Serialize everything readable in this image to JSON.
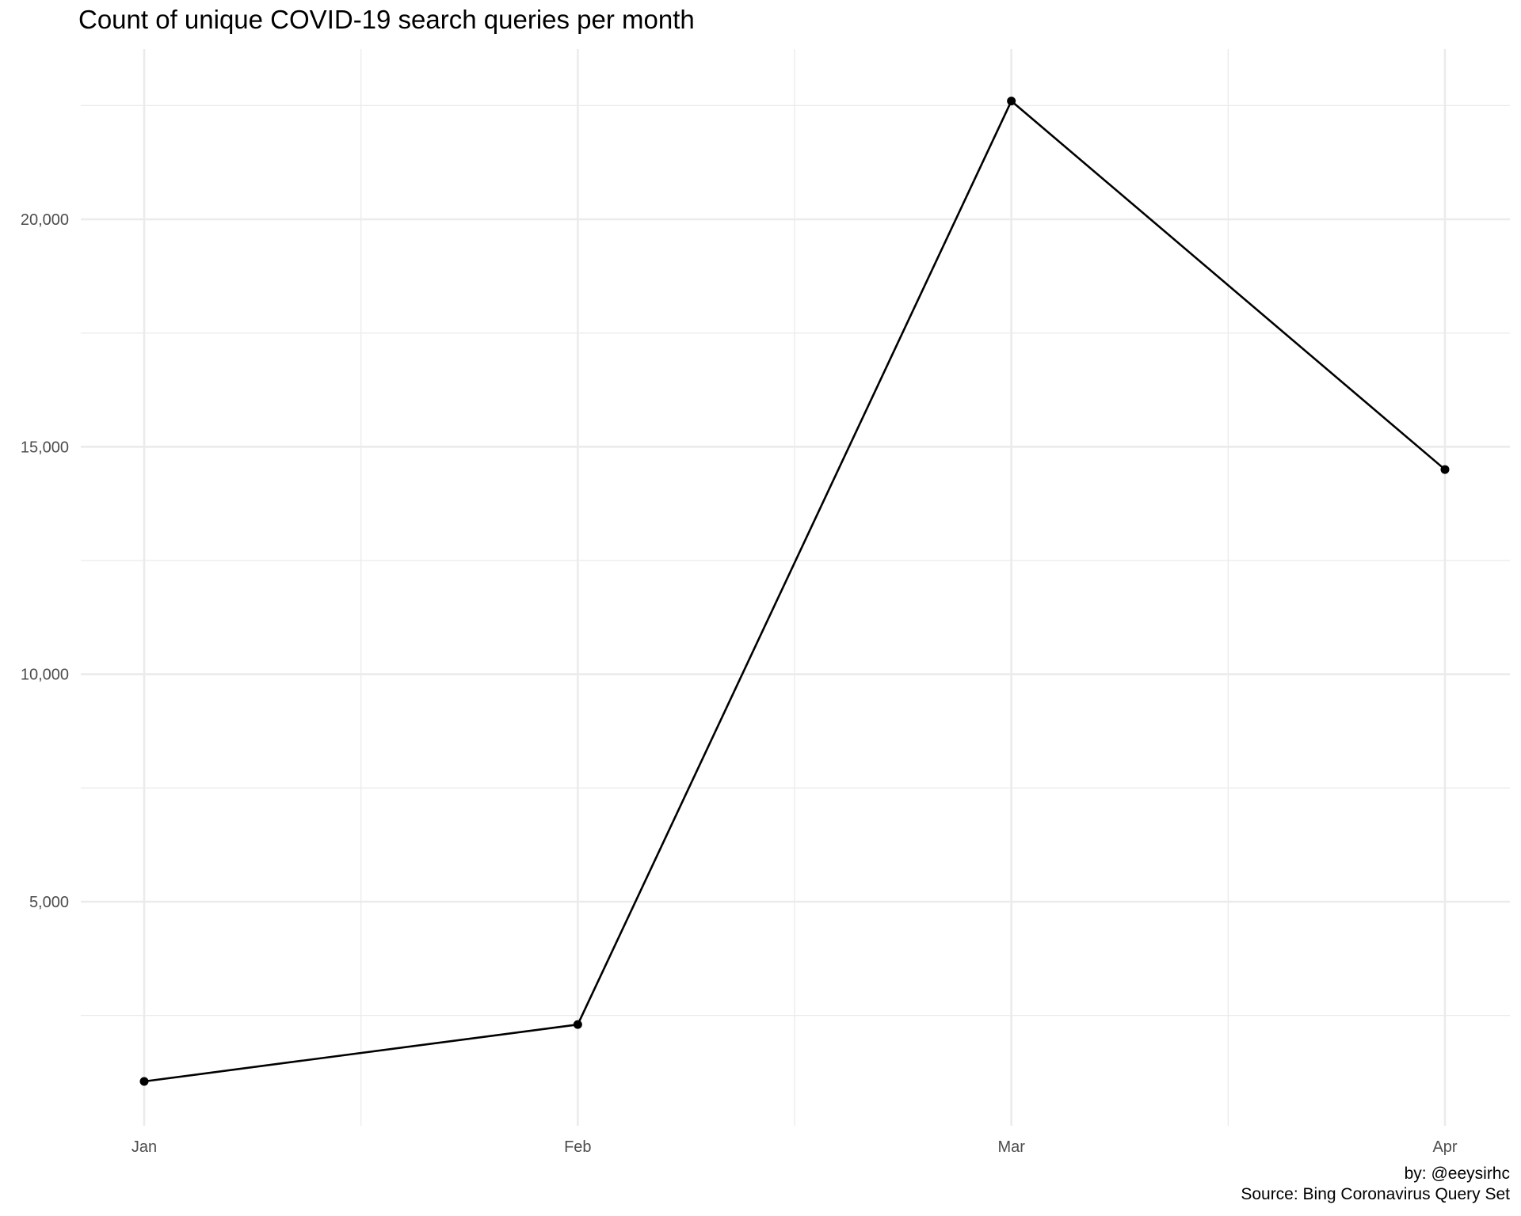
{
  "chart_data": {
    "type": "line",
    "title": "Count of unique COVID-19 search queries per month",
    "xlabel": "",
    "ylabel": "",
    "categories": [
      "Jan",
      "Feb",
      "Mar",
      "Apr"
    ],
    "values": [
      1050,
      2300,
      22600,
      14500
    ],
    "y_ticks": [
      5000,
      10000,
      15000,
      20000
    ],
    "y_tick_labels": [
      "5,000",
      "10,000",
      "15,000",
      "20,000"
    ],
    "ylim": [
      -200,
      23700
    ],
    "grid": true,
    "legend": "none",
    "caption": {
      "author": "by: @eeysirhc",
      "source": "Source: Bing Coronavirus Query Set"
    },
    "colors": {
      "line": "#000000",
      "points": "#000000",
      "grid": "#ebebeb",
      "tick_label": "#4d4d4d",
      "background": "#ffffff"
    }
  }
}
